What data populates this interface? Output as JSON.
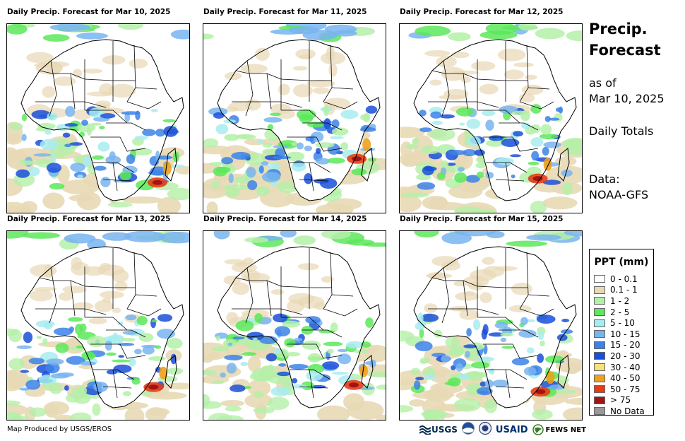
{
  "panels": [
    {
      "title": "Daily Precip. Forecast for Mar 10, 2025"
    },
    {
      "title": "Daily Precip. Forecast for Mar 11, 2025"
    },
    {
      "title": "Daily Precip. Forecast for Mar 12, 2025"
    },
    {
      "title": "Daily Precip. Forecast for Mar 13, 2025"
    },
    {
      "title": "Daily Precip. Forecast for Mar 14, 2025"
    },
    {
      "title": "Daily Precip. Forecast for Mar 15, 2025"
    }
  ],
  "side": {
    "title_line1": "Precip.",
    "title_line2": "Forecast",
    "asof_line1": "as of",
    "asof_line2": "Mar 10, 2025",
    "totals": "Daily Totals",
    "data_line1": "Data:",
    "data_line2": "NOAA-GFS"
  },
  "legend": {
    "title": "PPT (mm)",
    "items": [
      {
        "label": "0 - 0.1",
        "color": "#ffffff"
      },
      {
        "label": "0.1 - 1",
        "color": "#e8d9b5"
      },
      {
        "label": "1 - 2",
        "color": "#b4f0a8"
      },
      {
        "label": "2 - 5",
        "color": "#5ce85a"
      },
      {
        "label": "5 - 10",
        "color": "#a8ecf0"
      },
      {
        "label": "10 - 15",
        "color": "#78b4f0"
      },
      {
        "label": "15 - 20",
        "color": "#3c82e8"
      },
      {
        "label": "20 - 30",
        "color": "#1a50d8"
      },
      {
        "label": "30 - 40",
        "color": "#f8e07a"
      },
      {
        "label": "40 - 50",
        "color": "#f0a01a"
      },
      {
        "label": "50 - 75",
        "color": "#e83c14"
      },
      {
        "label": "> 75",
        "color": "#a01414"
      },
      {
        "label": "No Data",
        "color": "#999999"
      }
    ]
  },
  "footer": {
    "credit": "Map Produced by USGS/EROS",
    "logo_usgs": "USGS",
    "logo_usaid": "USAID",
    "logo_fews": "FEWS NET"
  }
}
